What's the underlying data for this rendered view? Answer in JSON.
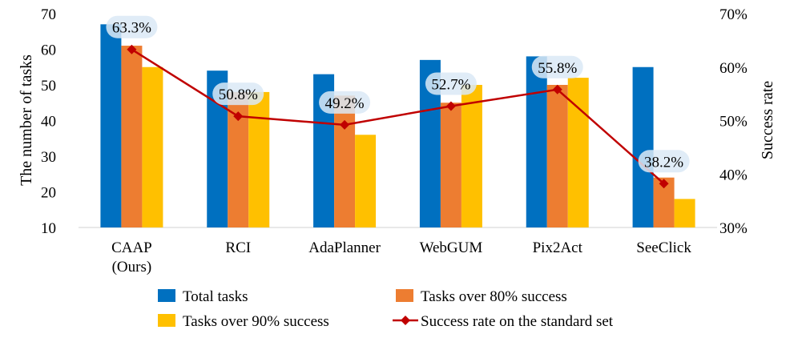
{
  "chart_data": {
    "type": "bar",
    "categories": [
      "CAAP\n(Ours)",
      "RCI",
      "AdaPlanner",
      "WebGUM",
      "Pix2Act",
      "SeeClick"
    ],
    "series": [
      {
        "name": "Total tasks",
        "values": [
          67,
          54,
          53,
          57,
          58,
          55
        ],
        "color": "#0070C0"
      },
      {
        "name": "Tasks over 80% success",
        "values": [
          61,
          48,
          47,
          45,
          50,
          24
        ],
        "color": "#ED7D31"
      },
      {
        "name": "Tasks over 90% success",
        "values": [
          55,
          48,
          36,
          50,
          52,
          18
        ],
        "color": "#FFC000"
      }
    ],
    "line_series": {
      "name": "Success rate on the standard set",
      "values": [
        63.3,
        50.8,
        49.2,
        52.7,
        55.8,
        38.2
      ],
      "labels": [
        "63.3%",
        "50.8%",
        "49.2%",
        "52.7%",
        "55.8%",
        "38.2%"
      ],
      "color": "#C00000",
      "axis": "right"
    },
    "ylabel": "The number of tasks",
    "y2label": "Success rate",
    "ylim": [
      10,
      70
    ],
    "y2lim": [
      30,
      70
    ],
    "yticks": [
      "10",
      "20",
      "30",
      "40",
      "50",
      "60",
      "70"
    ],
    "y2ticks": [
      "30%",
      "40%",
      "50%",
      "60%",
      "70%"
    ],
    "grid": false,
    "legend_position": "bottom"
  }
}
